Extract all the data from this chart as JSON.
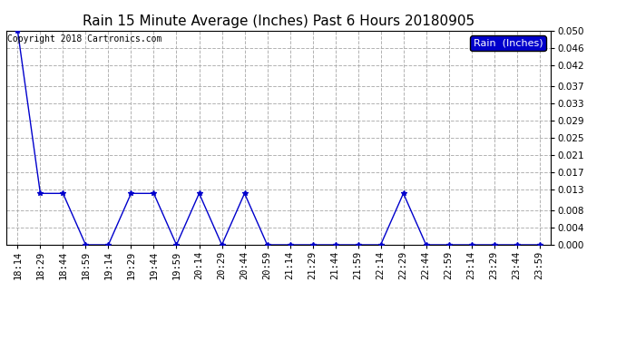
{
  "title": "Rain 15 Minute Average (Inches) Past 6 Hours 20180905",
  "copyright_text": "Copyright 2018 Cartronics.com",
  "legend_label": "Rain  (Inches)",
  "x_labels": [
    "18:14",
    "18:29",
    "18:44",
    "18:59",
    "19:14",
    "19:29",
    "19:44",
    "19:59",
    "20:14",
    "20:29",
    "20:44",
    "20:59",
    "21:14",
    "21:29",
    "21:44",
    "21:59",
    "22:14",
    "22:29",
    "22:44",
    "22:59",
    "23:14",
    "23:29",
    "23:44",
    "23:59"
  ],
  "y_values": [
    0.05,
    0.012,
    0.012,
    0.0,
    0.0,
    0.012,
    0.012,
    0.0,
    0.012,
    0.0,
    0.012,
    0.0,
    0.0,
    0.0,
    0.0,
    0.0,
    0.0,
    0.012,
    0.0,
    0.0,
    0.0,
    0.0,
    0.0,
    0.0
  ],
  "y_ticks": [
    0.0,
    0.004,
    0.008,
    0.013,
    0.017,
    0.021,
    0.025,
    0.029,
    0.033,
    0.037,
    0.042,
    0.046,
    0.05
  ],
  "y_min": 0.0,
  "y_max": 0.05,
  "line_color": "#0000cc",
  "marker": "*",
  "marker_size": 4,
  "background_color": "#ffffff",
  "grid_color": "#aaaaaa",
  "legend_bg": "#0000cc",
  "legend_text_color": "#ffffff",
  "title_fontsize": 11,
  "axis_fontsize": 7.5,
  "copyright_fontsize": 7
}
